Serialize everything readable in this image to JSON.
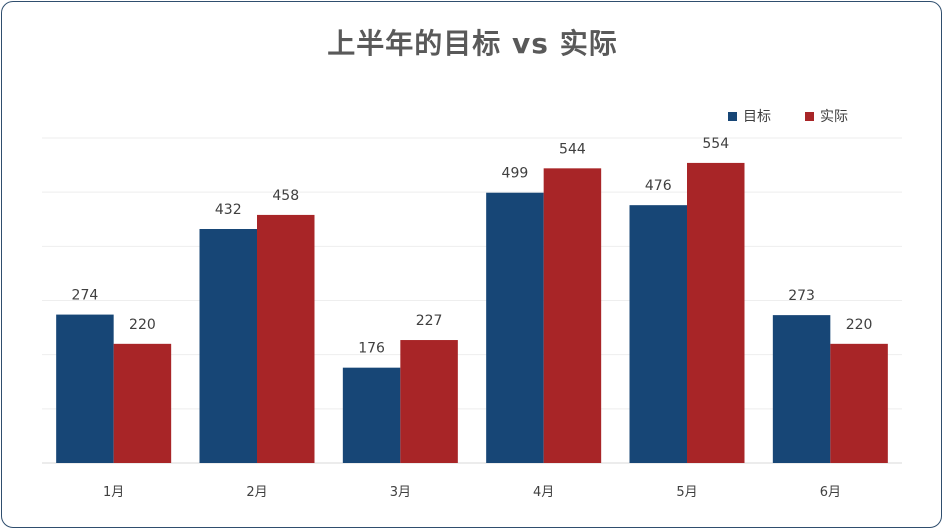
{
  "chart_data": {
    "type": "bar",
    "title": "上半年的目标 vs 实际",
    "categories": [
      "1月",
      "2月",
      "3月",
      "4月",
      "5月",
      "6月"
    ],
    "series": [
      {
        "name": "目标",
        "color": "#174676",
        "values": [
          274,
          432,
          176,
          499,
          476,
          273
        ]
      },
      {
        "name": "实际",
        "color": "#a82527",
        "values": [
          220,
          458,
          227,
          544,
          554,
          220
        ]
      }
    ],
    "ylim": [
      0,
      600
    ],
    "grid": true,
    "legend_position": "top-right",
    "data_labels": true
  }
}
